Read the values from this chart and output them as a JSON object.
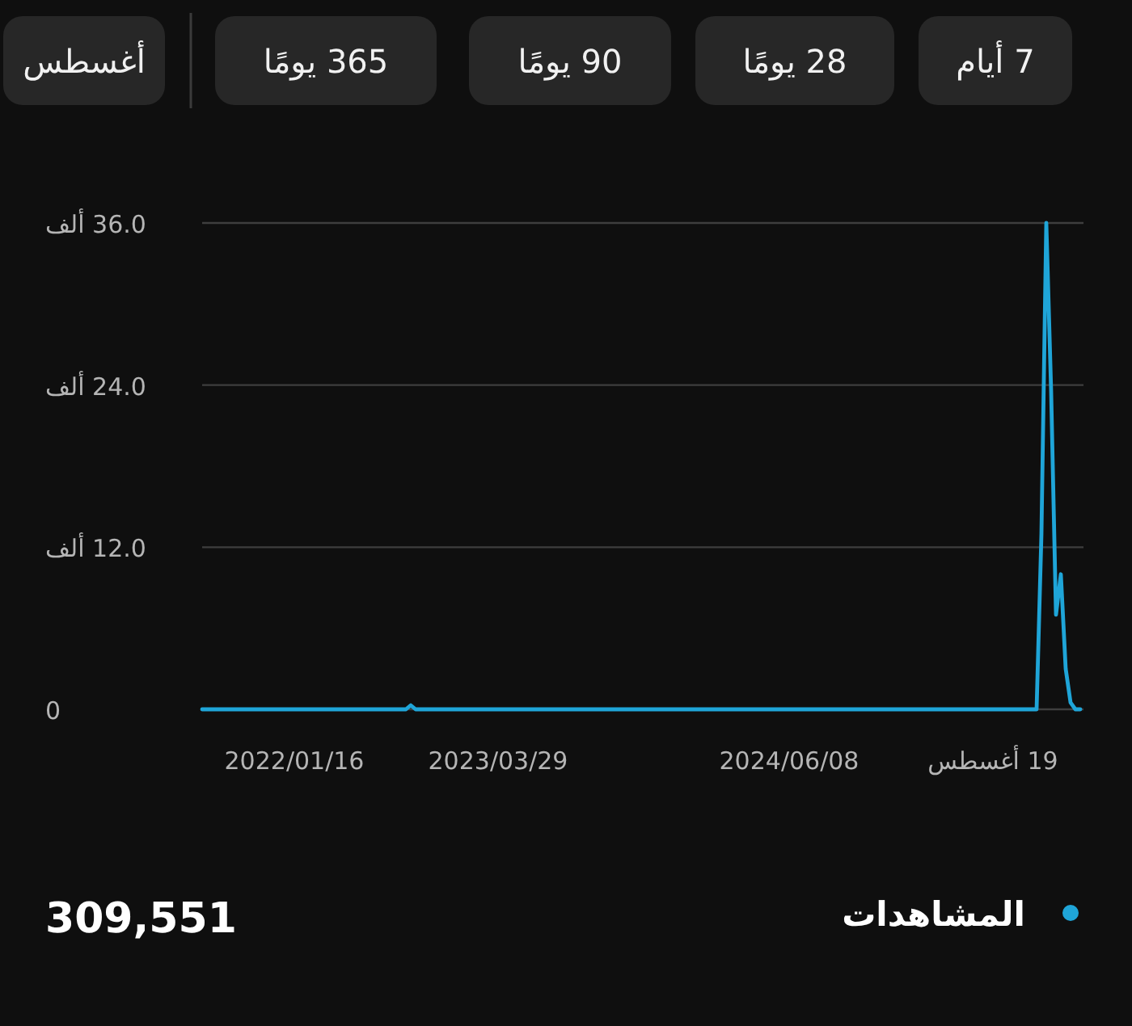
{
  "chart_data": {
    "type": "line",
    "categories": [
      null,
      null,
      null,
      null,
      null,
      null,
      null,
      null,
      null,
      null,
      null,
      null,
      null,
      null,
      null,
      null,
      null,
      null,
      null,
      "2022/01/16",
      null,
      null,
      null,
      null,
      null,
      null,
      null,
      null,
      null,
      null,
      null,
      null,
      null,
      null,
      null,
      null,
      null,
      null,
      null,
      null,
      null,
      null,
      null,
      null,
      null,
      null,
      null,
      null,
      null,
      null,
      null,
      null,
      null,
      null,
      null,
      null,
      null,
      null,
      null,
      null,
      null,
      "2023/03/29",
      null,
      null,
      null,
      null,
      null,
      null,
      null,
      null,
      null,
      null,
      null,
      null,
      null,
      null,
      null,
      null,
      null,
      null,
      null,
      null,
      null,
      null,
      null,
      null,
      null,
      null,
      null,
      null,
      null,
      null,
      null,
      null,
      null,
      null,
      null,
      null,
      null,
      null,
      null,
      null,
      null,
      null,
      null,
      null,
      null,
      null,
      null,
      null,
      null,
      null,
      null,
      null,
      null,
      null,
      null,
      null,
      null,
      null,
      null,
      "2024/06/08",
      null,
      null,
      null,
      null,
      null,
      null,
      null,
      null,
      null,
      null,
      null,
      null,
      null,
      null,
      null,
      null,
      null,
      null,
      null,
      null,
      null,
      null,
      null,
      null,
      null,
      null,
      null,
      null,
      null,
      null,
      null,
      null,
      null,
      null,
      null,
      null,
      null,
      null,
      null,
      null,
      null,
      "19 أغسطس",
      null,
      null,
      null,
      null,
      null,
      null,
      null,
      null,
      null,
      null,
      null,
      null,
      null,
      null,
      null,
      null,
      null,
      null
    ],
    "series": [
      {
        "name": "المشاهدات",
        "color": "#1fa5d8",
        "values": [
          0,
          0,
          0,
          0,
          0,
          0,
          0,
          0,
          0,
          0,
          0,
          0,
          0,
          0,
          0,
          0,
          0,
          0,
          0,
          0,
          0,
          0,
          0,
          0,
          0,
          0,
          0,
          0,
          0,
          0,
          0,
          0,
          0,
          0,
          0,
          0,
          0,
          0,
          0,
          0,
          0,
          0,
          0,
          0.3,
          0,
          0,
          0,
          0,
          0,
          0,
          0,
          0,
          0,
          0,
          0,
          0,
          0,
          0,
          0,
          0,
          0,
          0,
          0,
          0,
          0,
          0,
          0,
          0,
          0,
          0,
          0,
          0,
          0,
          0,
          0,
          0,
          0,
          0,
          0,
          0,
          0,
          0,
          0,
          0,
          0,
          0,
          0,
          0,
          0,
          0,
          0,
          0,
          0,
          0,
          0,
          0,
          0,
          0,
          0,
          0,
          0,
          0,
          0,
          0,
          0,
          0,
          0,
          0,
          0,
          0,
          0,
          0,
          0,
          0,
          0,
          0,
          0,
          0,
          0,
          0,
          0,
          0,
          0,
          0,
          0,
          0,
          0,
          0,
          0,
          0,
          0,
          0,
          0,
          0,
          0,
          0,
          0,
          0,
          0,
          0,
          0,
          0,
          0,
          0,
          0,
          0,
          0,
          0,
          0,
          0,
          0,
          0,
          0,
          0,
          0,
          0,
          0,
          0,
          0,
          0,
          0,
          0,
          0,
          0,
          0,
          0,
          0,
          0,
          0,
          0,
          0,
          0,
          0,
          13,
          36,
          23.5,
          7,
          10,
          3,
          0.5,
          0,
          0
        ]
      }
    ],
    "ylim": [
      0,
      36
    ],
    "yticks": [
      0,
      {
        "value": 12,
        "label": "12.0 ألف"
      },
      {
        "value": 24,
        "label": "24.0 ألف"
      },
      {
        "value": 36,
        "label": "36.0 ألف"
      }
    ],
    "grid": "y",
    "legend": "bottom",
    "annotations": [
      "7 أيام",
      "28 يومًا",
      "90 يومًا",
      "365 يومًا",
      "أغسطس",
      "309,551"
    ]
  }
}
